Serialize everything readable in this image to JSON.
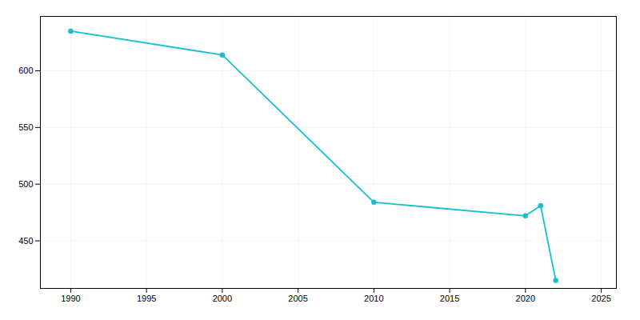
{
  "chart_data": {
    "type": "line",
    "x": [
      1990,
      2000,
      2010,
      2020,
      2021,
      2022
    ],
    "values": [
      635,
      614,
      484,
      472,
      481,
      415
    ],
    "color": "#17becf",
    "marker": "circle",
    "line_style": "solid",
    "xlim": [
      1988,
      2026
    ],
    "xticks": [
      1990,
      1995,
      2000,
      2005,
      2010,
      2015,
      2020,
      2025
    ],
    "ylim": [
      408,
      648
    ],
    "yticks": [
      450,
      500,
      550,
      600
    ],
    "grid": true
  }
}
